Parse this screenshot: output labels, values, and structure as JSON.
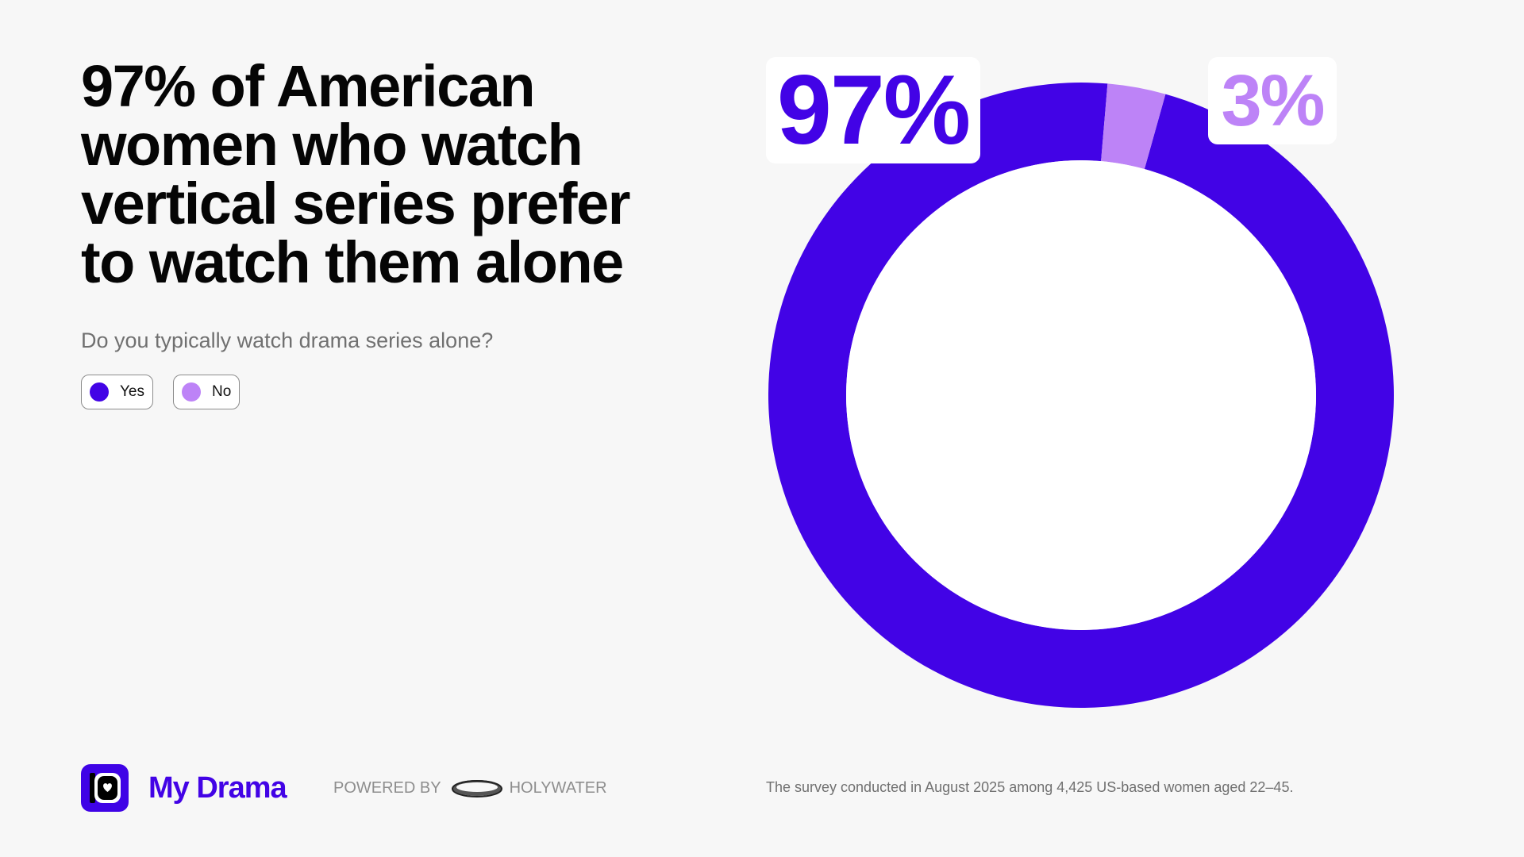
{
  "headline": "97% of American women who watch vertical series prefer to watch them alone",
  "question": "Do you typically watch drama series alone?",
  "colors": {
    "yes": "#4203e6",
    "no": "#bd83f7",
    "background": "#f7f7f7"
  },
  "legend": [
    {
      "label": "Yes",
      "color": "#4203e6"
    },
    {
      "label": "No",
      "color": "#bd83f7"
    }
  ],
  "chart_data": {
    "type": "pie",
    "variant": "donut",
    "title": "Do you typically watch drama series alone?",
    "categories": [
      "Yes",
      "No"
    ],
    "values": [
      97,
      3
    ],
    "unit": "%",
    "data_labels": [
      "97%",
      "3%"
    ],
    "legend_placement": "top-left"
  },
  "footer": {
    "brand": "My Drama",
    "powered_by": "POWERED BY",
    "partner": "HOLYWATER",
    "note": "The survey conducted in August 2025 among 4,425 US-based women aged 22–45."
  }
}
